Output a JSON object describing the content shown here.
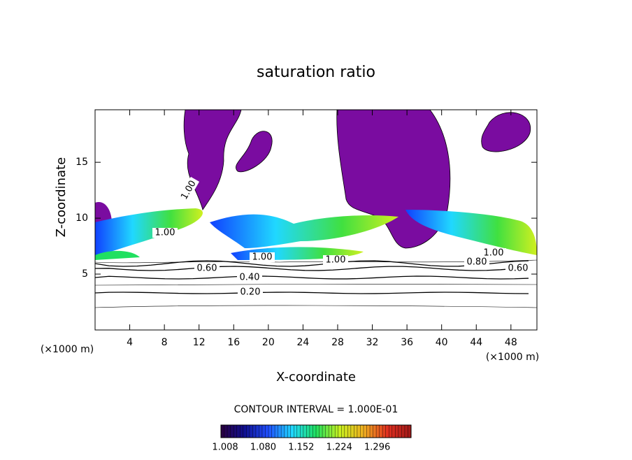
{
  "chart_data": {
    "type": "contour",
    "title": "saturation ratio",
    "x_label": "X-coordinate",
    "y_label": "Z-coordinate",
    "x_unit": "(×1000 m)",
    "contour_interval": "CONTOUR INTERVAL = 1.000E-01",
    "xlim": [
      0,
      51
    ],
    "ylim": [
      0,
      19.7
    ],
    "xticks": [
      4,
      8,
      12,
      16,
      20,
      24,
      28,
      32,
      36,
      40,
      44,
      48
    ],
    "yticks": [
      5,
      10,
      15
    ],
    "contour_levels": [
      {
        "value": 0.2,
        "label": "0.20"
      },
      {
        "value": 0.4,
        "label": "0.40"
      },
      {
        "value": 0.6,
        "label": "0.60"
      },
      {
        "value": 0.8,
        "label": "0.80"
      },
      {
        "value": 1.0,
        "label": "1.00"
      }
    ],
    "contour_labels": [
      {
        "value": 1.0,
        "label": "1.00"
      },
      {
        "value": 1.0,
        "label": "1.00"
      },
      {
        "value": 0.6,
        "label": "0.60"
      },
      {
        "value": 0.4,
        "label": "0.40"
      },
      {
        "value": 0.2,
        "label": "0.20"
      },
      {
        "value": 1.0,
        "label": "1.00"
      },
      {
        "value": 1.0,
        "label": "1.00"
      },
      {
        "value": 1.0,
        "label": "1.00"
      },
      {
        "value": 0.8,
        "label": "0.80"
      },
      {
        "value": 0.6,
        "label": "0.60"
      }
    ],
    "colorbar": {
      "lim": [
        1.0,
        1.36
      ],
      "ticks": [
        {
          "value": 1.008,
          "label": "1.008"
        },
        {
          "value": 1.08,
          "label": "1.080"
        },
        {
          "value": 1.152,
          "label": "1.152"
        },
        {
          "value": 1.224,
          "label": "1.224"
        },
        {
          "value": 1.296,
          "label": "1.296"
        }
      ],
      "colors": [
        "#2a0040",
        "#101090",
        "#2050ff",
        "#20d8ff",
        "#20e060",
        "#c8f020",
        "#f0b020",
        "#e03020",
        "#a01818"
      ]
    }
  }
}
